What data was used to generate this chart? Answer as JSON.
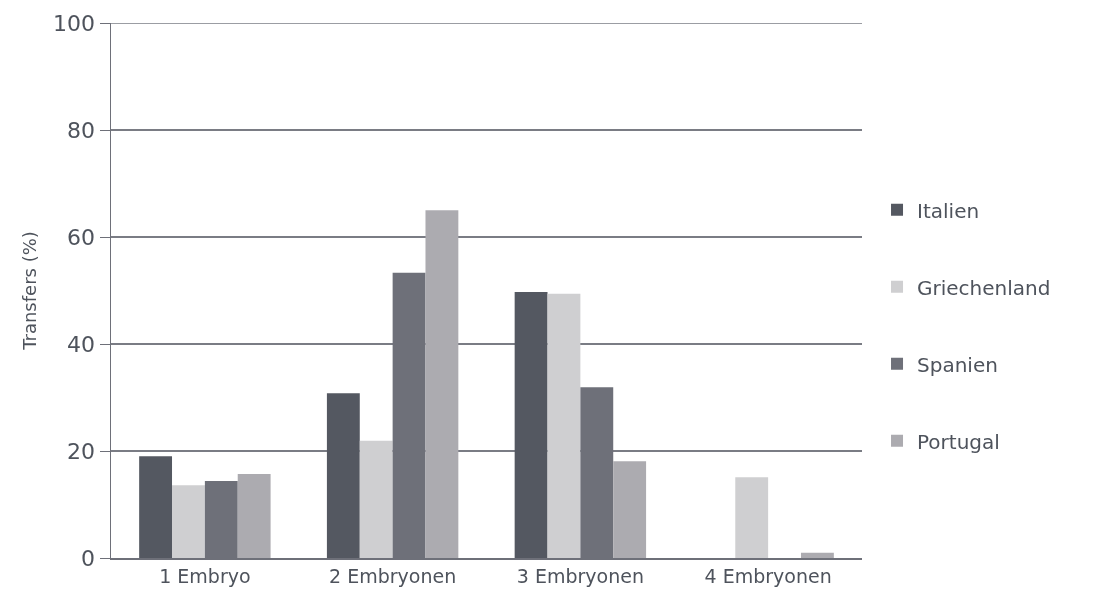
{
  "chart_data": {
    "type": "bar",
    "ylabel": "Transfers (%)",
    "categories": [
      "1 Embryo",
      "2 Embryonen",
      "3 Embryonen",
      "4 Embryonen"
    ],
    "series": [
      {
        "name": "Italien",
        "color": "#545861",
        "values": [
          19,
          30.8,
          49.7,
          null
        ]
      },
      {
        "name": "Griechenland",
        "color": "#cfcfd1",
        "values": [
          13.6,
          21.9,
          49.4,
          15.1
        ]
      },
      {
        "name": "Spanien",
        "color": "#6e7079",
        "values": [
          14.4,
          53.3,
          31.9,
          null
        ]
      },
      {
        "name": "Portugal",
        "color": "#acabb0",
        "values": [
          15.7,
          65,
          18.1,
          1
        ]
      }
    ],
    "ylim": [
      0,
      100
    ],
    "yticks": [
      0,
      20,
      40,
      60,
      80,
      100
    ],
    "grid": "y",
    "legend": "right"
  }
}
